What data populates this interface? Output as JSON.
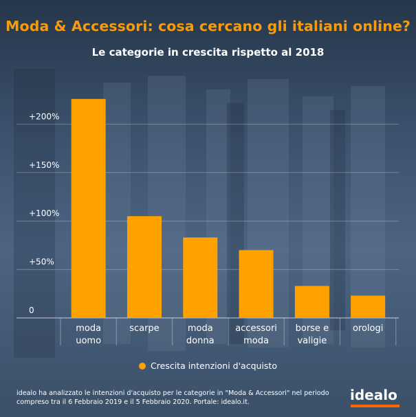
{
  "title": "Moda & Accessori: cosa cercano gli italiani online?",
  "subtitle": "Le categorie in crescita rispetto al 2018",
  "colors": {
    "bar": "#ffa200",
    "title": "#f39c12",
    "logo_bar": "#ff6600"
  },
  "chart_data": {
    "type": "bar",
    "categories": [
      [
        "moda",
        "uomo"
      ],
      [
        "scarpe"
      ],
      [
        "moda",
        "donna"
      ],
      [
        "accessori",
        "moda"
      ],
      [
        "borse e",
        "valigie"
      ],
      [
        "orologi"
      ]
    ],
    "series": [
      {
        "name": "Crescita intenzioni d'acquisto",
        "values": [
          226,
          105,
          83,
          70,
          33,
          23
        ]
      }
    ],
    "yticks": [
      "0",
      "+50%",
      "+100%",
      "+150%",
      "+200%"
    ],
    "ytick_values": [
      0,
      50,
      100,
      150,
      200
    ],
    "ylim": [
      0,
      250
    ],
    "grid": true,
    "legend": "bottom"
  },
  "legend_label": "Crescita intenzioni d'acquisto",
  "footer": "idealo ha analizzato le intenzioni d'acquisto per le categorie in \"Moda & Accessori\" nel periodo compreso tra il 6 Febbraio 2019 e il 5 Febbraio 2020. Portale: idealo.it.",
  "logo": "idealo"
}
